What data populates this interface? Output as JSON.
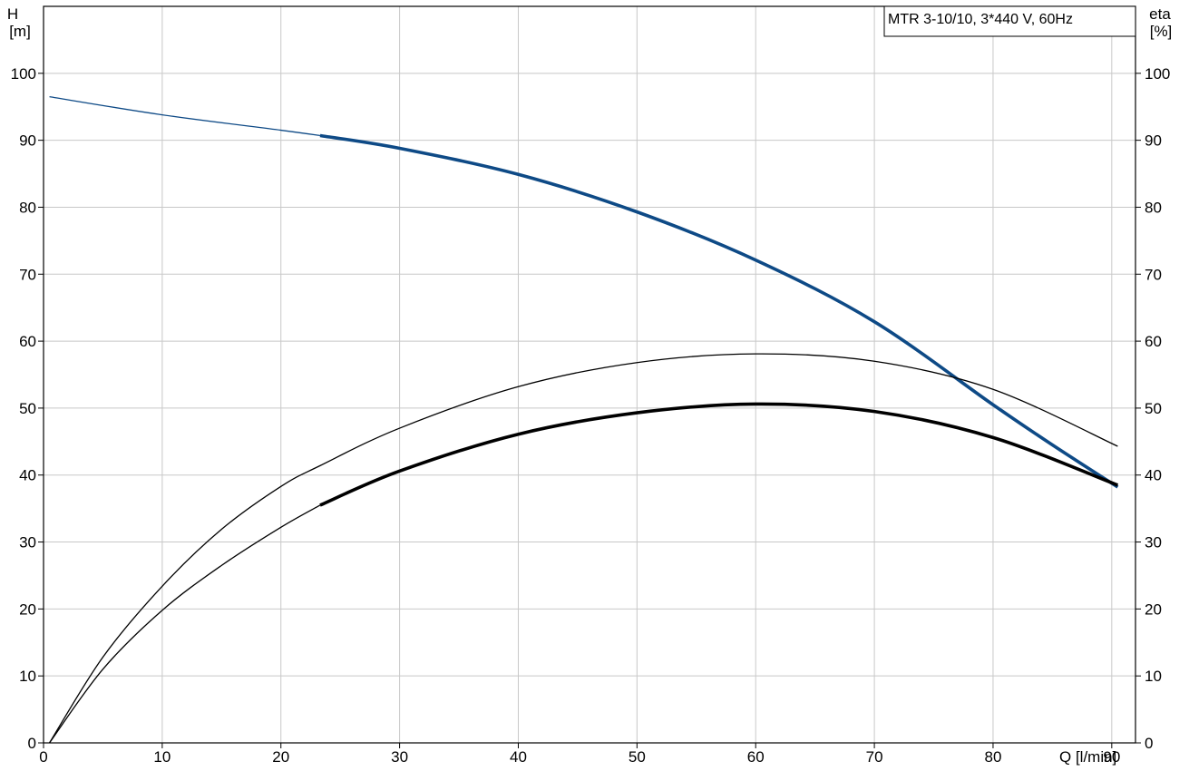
{
  "chart_data": {
    "type": "line",
    "title": "MTR 3-10/10, 3*440 V, 60Hz",
    "xlabel": "Q [l/min]",
    "ylabel": [
      "H",
      "[m]"
    ],
    "y2label": [
      "eta",
      "[%]"
    ],
    "xlim": [
      0,
      92
    ],
    "ylim": [
      0,
      110
    ],
    "y2lim": [
      0,
      110
    ],
    "xticks": [
      0,
      10,
      20,
      30,
      40,
      50,
      60,
      70,
      80,
      90
    ],
    "yticks": [
      0,
      10,
      20,
      30,
      40,
      50,
      60,
      70,
      80,
      90,
      100
    ],
    "y2ticks": [
      0,
      10,
      20,
      30,
      40,
      50,
      60,
      70,
      80,
      90,
      100
    ],
    "grid": true,
    "legend": "top-right",
    "colors": {
      "head": "#0e4a86",
      "efficiency": "#000000",
      "grid": "#c8c8c8"
    },
    "series": [
      {
        "key": "head",
        "axis": "left",
        "color": "#0e4a86",
        "points": [
          [
            0.5,
            96.5
          ],
          [
            10,
            93.8
          ],
          [
            20,
            91.5
          ],
          [
            23.3,
            90.7
          ],
          [
            30,
            88.8
          ],
          [
            40,
            84.9
          ],
          [
            50,
            79.3
          ],
          [
            60,
            72.1
          ],
          [
            70,
            62.9
          ],
          [
            80,
            50.5
          ],
          [
            85,
            44.5
          ],
          [
            90.5,
            38.2
          ]
        ],
        "bold_from": 23.3
      },
      {
        "key": "eta_upper",
        "axis": "right",
        "color": "#000000",
        "points": [
          [
            0.5,
            0
          ],
          [
            5,
            12.8
          ],
          [
            10,
            23.4
          ],
          [
            15,
            31.9
          ],
          [
            20,
            38.3
          ],
          [
            23.3,
            41.4
          ],
          [
            30,
            47.0
          ],
          [
            40,
            53.2
          ],
          [
            50,
            56.8
          ],
          [
            60,
            58.1
          ],
          [
            70,
            57.0
          ],
          [
            80,
            52.8
          ],
          [
            90.5,
            44.3
          ]
        ],
        "bold_from": 99
      },
      {
        "key": "eta_lower",
        "axis": "right",
        "color": "#000000",
        "points": [
          [
            0.5,
            0
          ],
          [
            5,
            11.0
          ],
          [
            10,
            19.8
          ],
          [
            15,
            26.5
          ],
          [
            20,
            32.2
          ],
          [
            23.3,
            35.5
          ],
          [
            30,
            40.6
          ],
          [
            40,
            46.1
          ],
          [
            50,
            49.3
          ],
          [
            60,
            50.6
          ],
          [
            70,
            49.5
          ],
          [
            80,
            45.6
          ],
          [
            90.5,
            38.5
          ]
        ],
        "bold_from": 23.3
      }
    ]
  }
}
